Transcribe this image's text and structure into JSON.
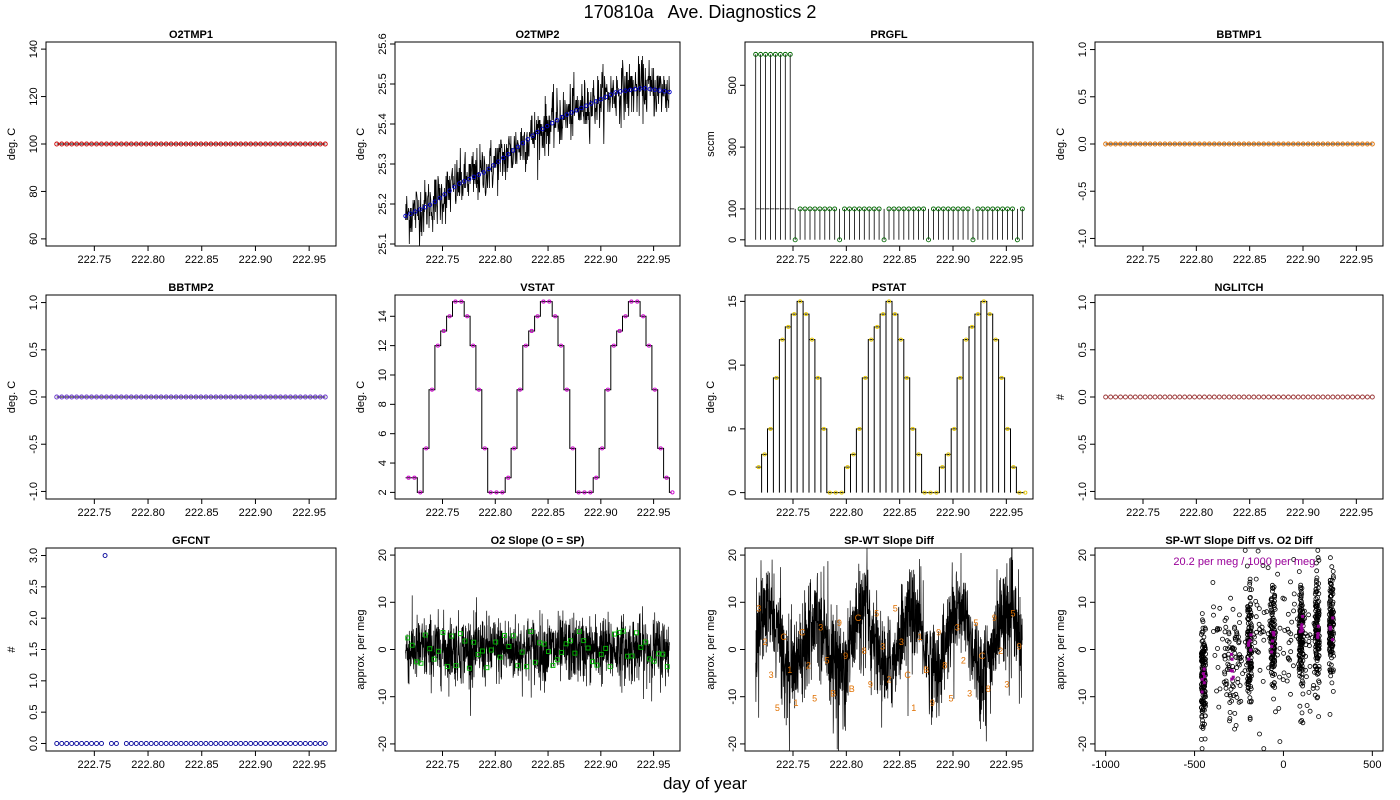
{
  "page": {
    "title": "170810a   Ave. Diagnostics 2",
    "xlabel": "day of year"
  },
  "chart_data": [
    {
      "type": "scatter",
      "title": "O2TMP1",
      "ylabel": "deg. C",
      "xlim": [
        222.705,
        222.975
      ],
      "ylim": [
        57,
        143
      ],
      "xticks": [
        222.75,
        222.8,
        222.85,
        222.9,
        222.95
      ],
      "xtick_labels": [
        "222.75",
        "222.80",
        "222.85",
        "222.90",
        "222.95"
      ],
      "yticks": [
        60,
        80,
        100,
        120,
        140
      ],
      "ytick_labels": [
        "60",
        "80",
        "100",
        "120",
        "140"
      ],
      "line_color": "#000000",
      "point_color": "#cc0000",
      "point_shape": "circle",
      "x_start": 222.715,
      "x_end": 222.965,
      "points": 55,
      "value": 100,
      "series": [
        {
          "x": [
            222.715,
            222.965
          ],
          "y": [
            100,
            100
          ]
        }
      ]
    },
    {
      "type": "line",
      "title": "O2TMP2",
      "ylabel": "deg. C",
      "xlim": [
        222.705,
        222.975
      ],
      "ylim": [
        25.095,
        25.605
      ],
      "xticks": [
        222.75,
        222.8,
        222.85,
        222.9,
        222.95
      ],
      "xtick_labels": [
        "222.75",
        "222.80",
        "222.85",
        "222.90",
        "222.95"
      ],
      "yticks": [
        25.1,
        25.2,
        25.3,
        25.4,
        25.5,
        25.6
      ],
      "ytick_labels": [
        "25.1",
        "25.2",
        "25.3",
        "25.4",
        "25.5",
        "25.6"
      ],
      "line_color": "#000000",
      "point_color": "#0000cc",
      "point_shape": "circle",
      "x_start": 222.715,
      "x_end": 222.965,
      "points": 55,
      "series": [
        {
          "name": "",
          "x": [
            222.715,
            222.74,
            222.765,
            222.79,
            222.815,
            222.84,
            222.865,
            222.89,
            222.915,
            222.94,
            222.965
          ],
          "y": [
            25.17,
            25.2,
            25.25,
            25.28,
            25.33,
            25.38,
            25.42,
            25.45,
            25.48,
            25.49,
            25.48
          ]
        }
      ]
    },
    {
      "type": "line",
      "title": "PRGFL",
      "ylabel": "sccm",
      "xlim": [
        222.705,
        222.975
      ],
      "ylim": [
        -20,
        640
      ],
      "xticks": [
        222.75,
        222.8,
        222.85,
        222.9,
        222.95
      ],
      "xtick_labels": [
        "222.75",
        "222.80",
        "222.85",
        "222.90",
        "222.95"
      ],
      "yticks": [
        0,
        100,
        300,
        500
      ],
      "ytick_labels": [
        "0",
        "100",
        "300",
        "500"
      ],
      "line_color": "#000000",
      "point_color": "#006600",
      "point_shape": "circle",
      "x_start": 222.715,
      "x_end": 222.965,
      "points": 55,
      "series": [
        {
          "name": "",
          "x": [
            222.715,
            222.75,
            222.755,
            222.965
          ],
          "y": [
            600,
            600,
            100,
            100
          ]
        }
      ]
    },
    {
      "type": "scatter",
      "title": "BBTMP1",
      "ylabel": "deg. C",
      "xlim": [
        222.705,
        222.975
      ],
      "ylim": [
        -1.08,
        1.08
      ],
      "xticks": [
        222.75,
        222.8,
        222.85,
        222.9,
        222.95
      ],
      "xtick_labels": [
        "222.75",
        "222.80",
        "222.85",
        "222.90",
        "222.95"
      ],
      "yticks": [
        -1.0,
        -0.5,
        0.0,
        0.5,
        1.0
      ],
      "ytick_labels": [
        "-1.0",
        "-0.5",
        "0.0",
        "0.5",
        "1.0"
      ],
      "line_color": "#000000",
      "point_color": "#e07000",
      "point_shape": "circle",
      "x_start": 222.715,
      "x_end": 222.965,
      "points": 55,
      "value": 0.0,
      "series": [
        {
          "x": [
            222.715,
            222.965
          ],
          "y": [
            0,
            0
          ]
        }
      ]
    },
    {
      "type": "scatter",
      "title": "BBTMP2",
      "ylabel": "deg. C",
      "xlim": [
        222.705,
        222.975
      ],
      "ylim": [
        -1.08,
        1.08
      ],
      "xticks": [
        222.75,
        222.8,
        222.85,
        222.9,
        222.95
      ],
      "xtick_labels": [
        "222.75",
        "222.80",
        "222.85",
        "222.90",
        "222.95"
      ],
      "yticks": [
        -1.0,
        -0.5,
        0.0,
        0.5,
        1.0
      ],
      "ytick_labels": [
        "-1.0",
        "-0.5",
        "0.0",
        "0.5",
        "1.0"
      ],
      "line_color": "#000000",
      "point_color": "#6633cc",
      "point_shape": "circle",
      "x_start": 222.715,
      "x_end": 222.965,
      "points": 55,
      "value": 0.0,
      "series": [
        {
          "x": [
            222.715,
            222.965
          ],
          "y": [
            0,
            0
          ]
        }
      ]
    },
    {
      "type": "line",
      "title": "VSTAT",
      "ylabel": "deg. C",
      "xlim": [
        222.705,
        222.975
      ],
      "ylim": [
        1.55,
        15.45
      ],
      "xticks": [
        222.75,
        222.8,
        222.85,
        222.9,
        222.95
      ],
      "xtick_labels": [
        "222.75",
        "222.80",
        "222.85",
        "222.90",
        "222.95"
      ],
      "yticks": [
        2,
        4,
        6,
        8,
        10,
        12,
        14
      ],
      "ytick_labels": [
        "2",
        "4",
        "6",
        "8",
        "10",
        "12",
        "14"
      ],
      "line_color": "#000000",
      "point_color": "#cc00cc",
      "point_shape": "circle",
      "x_start": 222.715,
      "x_end": 222.965,
      "points": 55,
      "values": [
        3,
        3,
        2,
        5,
        9,
        12,
        13,
        14,
        15,
        15,
        14,
        12,
        9,
        5,
        2,
        2,
        2,
        3,
        5,
        9,
        12,
        13,
        14,
        15,
        15,
        14,
        12,
        9,
        5,
        2,
        2,
        2,
        3,
        5,
        9,
        12,
        13,
        14,
        15,
        15,
        14,
        12,
        9,
        5,
        3,
        2
      ]
    },
    {
      "type": "line",
      "title": "PSTAT",
      "ylabel": "deg. C",
      "xlim": [
        222.705,
        222.975
      ],
      "ylim": [
        -0.5,
        15.5
      ],
      "xticks": [
        222.75,
        222.8,
        222.85,
        222.9,
        222.95
      ],
      "xtick_labels": [
        "222.75",
        "222.80",
        "222.85",
        "222.90",
        "222.95"
      ],
      "yticks": [
        0,
        5,
        10,
        15
      ],
      "ytick_labels": [
        "0",
        "5",
        "10",
        "15"
      ],
      "line_color": "#000000",
      "point_color": "#e6c800",
      "point_shape": "circle",
      "x_start": 222.715,
      "x_end": 222.965,
      "points": 55,
      "values": [
        2,
        3,
        5,
        9,
        12,
        13,
        14,
        15,
        14,
        12,
        9,
        5,
        0,
        0,
        0,
        2,
        3,
        5,
        9,
        12,
        13,
        14,
        15,
        14,
        12,
        9,
        5,
        3,
        0,
        0,
        0,
        2,
        3,
        5,
        9,
        12,
        13,
        14,
        15,
        14,
        12,
        9,
        5,
        2,
        0,
        0
      ]
    },
    {
      "type": "scatter",
      "title": "NGLITCH",
      "ylabel": "#",
      "xlim": [
        222.705,
        222.975
      ],
      "ylim": [
        -1.08,
        1.08
      ],
      "xticks": [
        222.75,
        222.8,
        222.85,
        222.9,
        222.95
      ],
      "xtick_labels": [
        "222.75",
        "222.80",
        "222.85",
        "222.90",
        "222.95"
      ],
      "yticks": [
        -1.0,
        -0.5,
        0.0,
        0.5,
        1.0
      ],
      "ytick_labels": [
        "-1.0",
        "-0.5",
        "0.0",
        "0.5",
        "1.0"
      ],
      "point_color": "#993333",
      "point_shape": "circle",
      "x_start": 222.715,
      "x_end": 222.965,
      "points": 55,
      "value": 0.0,
      "series": [
        {
          "x": [
            222.715,
            222.965
          ],
          "y": [
            0,
            0
          ]
        }
      ]
    },
    {
      "type": "scatter",
      "title": "GFCNT",
      "ylabel": "#",
      "xlim": [
        222.705,
        222.975
      ],
      "ylim": [
        -0.12,
        3.12
      ],
      "xticks": [
        222.75,
        222.8,
        222.85,
        222.9,
        222.95
      ],
      "xtick_labels": [
        "222.75",
        "222.80",
        "222.85",
        "222.90",
        "222.95"
      ],
      "yticks": [
        0.0,
        0.5,
        1.0,
        1.5,
        2.0,
        2.5,
        3.0
      ],
      "ytick_labels": [
        "0.0",
        "0.5",
        "1.0",
        "1.5",
        "2.0",
        "2.5",
        "3.0"
      ],
      "point_color": "#000099",
      "point_shape": "circle",
      "x_start": 222.715,
      "x_end": 222.965,
      "points": 55,
      "value": 0.0,
      "outlier": {
        "x": 222.76,
        "y": 3.0
      },
      "series": [
        {
          "x": [
            222.715,
            222.76,
            222.965
          ],
          "y": [
            0,
            3,
            0
          ]
        }
      ]
    },
    {
      "type": "line",
      "title": "O2 Slope (O = SP)",
      "ylabel": "approx. per meg",
      "xlim": [
        222.705,
        222.975
      ],
      "ylim": [
        -21.5,
        21.5
      ],
      "xticks": [
        222.75,
        222.8,
        222.85,
        222.9,
        222.95
      ],
      "xtick_labels": [
        "222.75",
        "222.80",
        "222.85",
        "222.90",
        "222.95"
      ],
      "yticks": [
        -20,
        -10,
        0,
        10,
        20
      ],
      "ytick_labels": [
        "-20",
        "-10",
        "0",
        "10",
        "20"
      ],
      "line_color": "#000000",
      "point_color": "#00bb00",
      "point_shape": "square",
      "x_start": 222.715,
      "x_end": 222.965,
      "mean": 0,
      "noise_sd": 3.5,
      "markers": 60,
      "marker_mean": 0,
      "marker_spread": 4
    },
    {
      "type": "line",
      "title": "SP-WT Slope Diff",
      "ylabel": "approx. per meg",
      "xlim": [
        222.705,
        222.975
      ],
      "ylim": [
        -21.5,
        21.5
      ],
      "xticks": [
        222.75,
        222.8,
        222.85,
        222.9,
        222.95
      ],
      "xtick_labels": [
        "222.75",
        "222.80",
        "222.85",
        "222.90",
        "222.95"
      ],
      "yticks": [
        -20,
        -10,
        0,
        10,
        20
      ],
      "ytick_labels": [
        "-20",
        "-10",
        "0",
        "10",
        "20"
      ],
      "line_color": "#000000",
      "label_color": "#e07000",
      "x_start": 222.715,
      "x_end": 222.965,
      "mean": 2,
      "noise_sd": 5,
      "annotations": [
        "3",
        "2",
        "3",
        "5",
        "C",
        "1",
        "1",
        "C",
        "2",
        "5",
        "3",
        "5",
        "B",
        "9",
        "9",
        "B",
        "C",
        "8",
        "9",
        "5",
        "3",
        "2",
        "5",
        "3",
        "C",
        "1",
        "1",
        "B",
        "9",
        "9",
        "8",
        "5",
        "3",
        "2",
        "3",
        "5",
        "C",
        "8",
        "9",
        "2",
        "3",
        "5",
        "9"
      ]
    },
    {
      "type": "scatter",
      "title": "SP-WT Slope Diff vs. O2 Diff",
      "ylabel": "approx. per meg",
      "xlim": [
        -1060,
        560
      ],
      "ylim": [
        -21.5,
        21.5
      ],
      "xticks": [
        -1000,
        -500,
        0,
        500
      ],
      "xtick_labels": [
        "-1000",
        "-500",
        "0",
        "500"
      ],
      "yticks": [
        -20,
        -10,
        0,
        10,
        20
      ],
      "ytick_labels": [
        "-20",
        "-10",
        "0",
        "10",
        "20"
      ],
      "point_color": "#000000",
      "highlight_color": "#990099",
      "annotation": "20.2 per meg / 1000 per meg",
      "clusters": [
        {
          "x": -450,
          "spread": 12,
          "y_mean": -6,
          "y_sd": 6,
          "n": 150
        },
        {
          "x": -290,
          "spread": 45,
          "y_mean": -3,
          "y_sd": 6,
          "n": 60
        },
        {
          "x": -190,
          "spread": 12,
          "y_mean": 0,
          "y_sd": 6,
          "n": 120
        },
        {
          "x": -60,
          "spread": 12,
          "y_mean": 2,
          "y_sd": 5,
          "n": 110
        },
        {
          "x": 100,
          "spread": 12,
          "y_mean": 3,
          "y_sd": 6,
          "n": 130
        },
        {
          "x": 190,
          "spread": 12,
          "y_mean": 4,
          "y_sd": 6,
          "n": 130
        },
        {
          "x": 270,
          "spread": 12,
          "y_mean": 5,
          "y_sd": 6,
          "n": 140
        },
        {
          "x": -100,
          "spread": 300,
          "y_mean": 1,
          "y_sd": 8,
          "n": 180
        }
      ]
    }
  ]
}
